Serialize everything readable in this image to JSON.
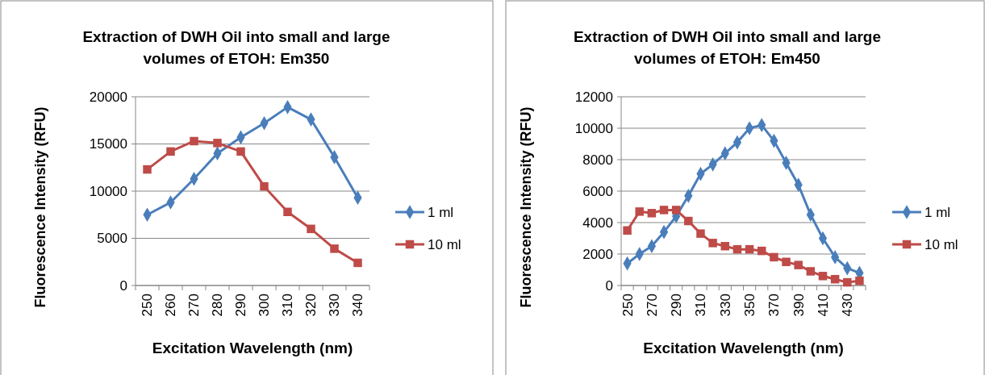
{
  "chart_data": [
    {
      "type": "line",
      "title": "Extraction of DWH Oil into small and large volumes of ETOH: Em350",
      "xlabel": "Excitation Wavelength (nm)",
      "ylabel": "Fluorescence Intensity (RFU)",
      "categories": [
        "250",
        "260",
        "270",
        "280",
        "290",
        "300",
        "310",
        "320",
        "330",
        "340"
      ],
      "ylim": [
        0,
        20000
      ],
      "yticks": [
        0,
        5000,
        10000,
        15000,
        20000
      ],
      "grid": "y",
      "legend": "right",
      "series": [
        {
          "name": "1 ml",
          "color": "#4a7ebb",
          "marker": "diamond",
          "values": [
            7500,
            8800,
            11300,
            14000,
            15700,
            17200,
            18900,
            17600,
            13600,
            9300
          ]
        },
        {
          "name": "10 ml",
          "color": "#be4b48",
          "marker": "square",
          "values": [
            12300,
            14200,
            15300,
            15100,
            14200,
            10500,
            7800,
            6000,
            3900,
            2400
          ]
        }
      ]
    },
    {
      "type": "line",
      "title": "Extraction of DWH Oil into small and large volumes of ETOH: Em450",
      "xlabel": "Excitation Wavelength (nm)",
      "ylabel": "Fluorescence Intensity (RFU)",
      "categories": [
        "250",
        null,
        "270",
        null,
        "290",
        null,
        "310",
        null,
        "330",
        null,
        "350",
        null,
        "370",
        null,
        "390",
        null,
        "410",
        null,
        "430",
        null
      ],
      "ylim": [
        0,
        12000
      ],
      "yticks": [
        0,
        2000,
        4000,
        6000,
        8000,
        10000,
        12000
      ],
      "grid": "y",
      "legend": "right",
      "series": [
        {
          "name": "1 ml",
          "color": "#4a7ebb",
          "marker": "diamond",
          "values": [
            1400,
            2000,
            2500,
            3400,
            4400,
            5700,
            7100,
            7700,
            8400,
            9100,
            10000,
            10200,
            9200,
            7800,
            6400,
            4500,
            3000,
            1800,
            1100,
            800
          ]
        },
        {
          "name": "10 ml",
          "color": "#be4b48",
          "marker": "square",
          "values": [
            3500,
            4700,
            4600,
            4800,
            4800,
            4100,
            3300,
            2700,
            2500,
            2300,
            2300,
            2200,
            1800,
            1500,
            1300,
            900,
            600,
            400,
            200,
            300
          ]
        }
      ]
    }
  ]
}
